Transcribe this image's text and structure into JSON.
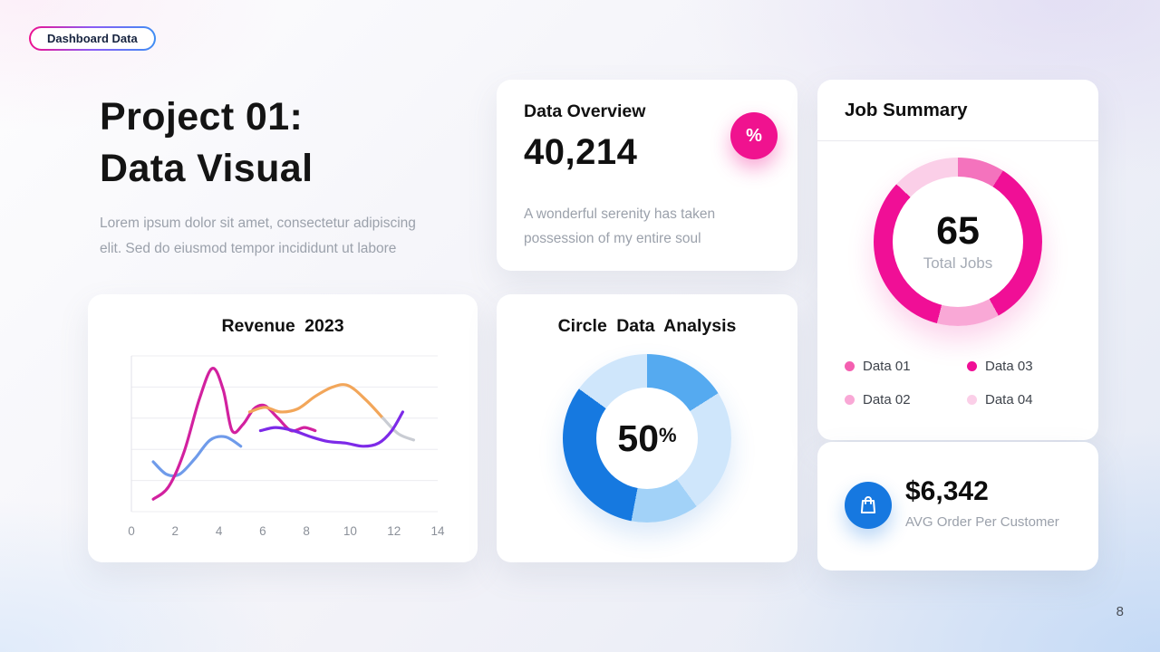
{
  "badge": {
    "label": "Dashboard Data"
  },
  "hero": {
    "title_line1": "Project 01:",
    "title_line2": "Data Visual",
    "description_line1": "Lorem ipsum dolor sit amet, consectetur adipiscing",
    "description_line2": "elit. Sed do eiusmod tempor incididunt ut labore"
  },
  "data_overview": {
    "title": "Data Overview",
    "value": "40,214",
    "badge_icon": "%",
    "badge_color": "#f0128f",
    "subtitle_line1": "A wonderful serenity has taken",
    "subtitle_line2": "possession of my entire soul"
  },
  "revenue_card": {
    "title": "Revenue 2023"
  },
  "circle_card": {
    "title": "Circle Data Analysis",
    "center_value": "50",
    "center_unit": "%"
  },
  "job_summary": {
    "title": "Job Summary",
    "center_value": "65",
    "center_label": "Total Jobs",
    "legend": [
      {
        "label": "Data 01",
        "color": "#f45fb0"
      },
      {
        "label": "Data 02",
        "color": "#f9a8d6"
      },
      {
        "label": "Data 03",
        "color": "#f00f96"
      },
      {
        "label": "Data 04",
        "color": "#fbcfe8"
      }
    ]
  },
  "avg_order": {
    "value": "$6,342",
    "label": "AVG Order Per Customer",
    "icon": "shopping-bag-icon",
    "icon_bg": "#1678e0"
  },
  "page": {
    "number": "8"
  },
  "chart_data": [
    {
      "id": "revenue",
      "type": "line",
      "title": "Revenue 2023",
      "xlabel": "",
      "ylabel": "",
      "xlim": [
        0,
        14
      ],
      "ylim": [
        0,
        100
      ],
      "x_ticks": [
        0,
        2,
        4,
        6,
        8,
        10,
        12,
        14
      ],
      "grid": "horizontal",
      "legend_position": "none",
      "series": [
        {
          "name": "series-blue",
          "color": "#6f9bea",
          "points": [
            [
              1.0,
              32
            ],
            [
              1.6,
              24
            ],
            [
              2.2,
              24
            ],
            [
              2.9,
              34
            ],
            [
              3.6,
              46
            ],
            [
              4.3,
              48
            ],
            [
              5.0,
              42
            ]
          ]
        },
        {
          "name": "series-magenta",
          "color": "#d2219f",
          "points": [
            [
              1.0,
              8
            ],
            [
              1.7,
              16
            ],
            [
              2.4,
              38
            ],
            [
              3.1,
              72
            ],
            [
              3.7,
              92
            ],
            [
              4.2,
              78
            ],
            [
              4.6,
              52
            ],
            [
              5.1,
              56
            ],
            [
              5.6,
              66
            ],
            [
              6.1,
              68
            ],
            [
              6.7,
              60
            ],
            [
              7.3,
              52
            ],
            [
              7.9,
              54
            ],
            [
              8.4,
              52
            ]
          ]
        },
        {
          "name": "series-orange",
          "color": "#f2a65a",
          "points": [
            [
              5.4,
              64
            ],
            [
              6.1,
              67
            ],
            [
              6.8,
              64
            ],
            [
              7.6,
              66
            ],
            [
              8.4,
              74
            ],
            [
              9.2,
              80
            ],
            [
              9.9,
              81
            ],
            [
              10.7,
              72
            ],
            [
              11.5,
              60
            ]
          ]
        },
        {
          "name": "series-gray",
          "color": "#c9ccd3",
          "points": [
            [
              11.5,
              60
            ],
            [
              12.2,
              50
            ],
            [
              12.9,
              46
            ]
          ]
        },
        {
          "name": "series-purple",
          "color": "#7d2ae8",
          "points": [
            [
              5.9,
              52
            ],
            [
              6.6,
              54
            ],
            [
              7.4,
              52
            ],
            [
              8.2,
              48
            ],
            [
              9.0,
              45
            ],
            [
              9.8,
              44
            ],
            [
              10.6,
              42
            ],
            [
              11.3,
              44
            ],
            [
              11.9,
              52
            ],
            [
              12.4,
              64
            ]
          ]
        }
      ]
    },
    {
      "id": "circle",
      "type": "donut",
      "title": "Circle Data Analysis",
      "center_label": "50%",
      "segments": [
        {
          "color": "#55aaf0",
          "value": 16
        },
        {
          "color": "#cfe6fb",
          "value": 24
        },
        {
          "color": "#a2d2f8",
          "value": 13
        },
        {
          "color": "#1679e0",
          "value": 32
        },
        {
          "color": "#cfe6fb",
          "value": 15
        }
      ]
    },
    {
      "id": "jobs",
      "type": "donut",
      "title": "Job Summary",
      "center_label": "65 Total Jobs",
      "segments": [
        {
          "color": "#f473bd",
          "value": 9
        },
        {
          "color": "#f00f96",
          "value": 33
        },
        {
          "color": "#f9a8d6",
          "value": 12
        },
        {
          "color": "#f00f96",
          "value": 33
        },
        {
          "color": "#fbcfe8",
          "value": 13
        }
      ]
    }
  ]
}
